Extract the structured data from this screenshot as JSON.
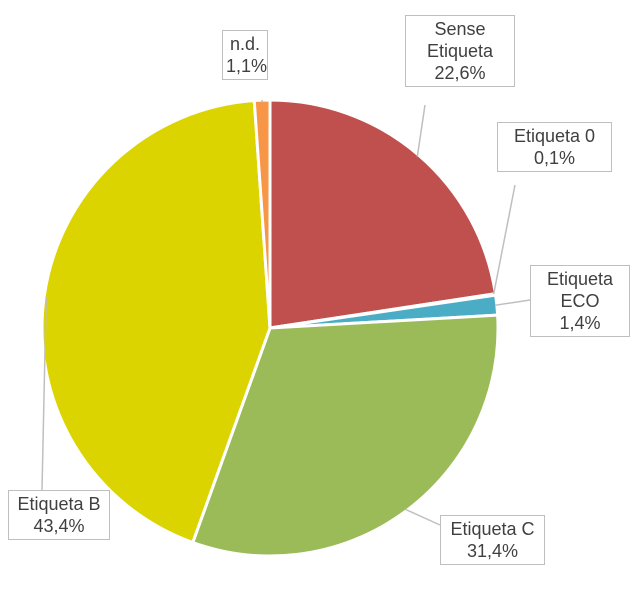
{
  "chart_data": {
    "type": "pie",
    "categories": [
      "Sense Etiqueta",
      "Etiqueta 0",
      "Etiqueta ECO",
      "Etiqueta C",
      "Etiqueta B",
      "n.d."
    ],
    "values": [
      22.6,
      0.1,
      1.4,
      31.4,
      43.4,
      1.1
    ],
    "value_labels": [
      "22,6%",
      "0,1%",
      "1,4%",
      "31,4%",
      "43,4%",
      "1,1%"
    ],
    "colors": [
      "#c0504d",
      "#4f81bd",
      "#4bacc6",
      "#9bbb59",
      "#dcd400",
      "#f79646"
    ]
  }
}
